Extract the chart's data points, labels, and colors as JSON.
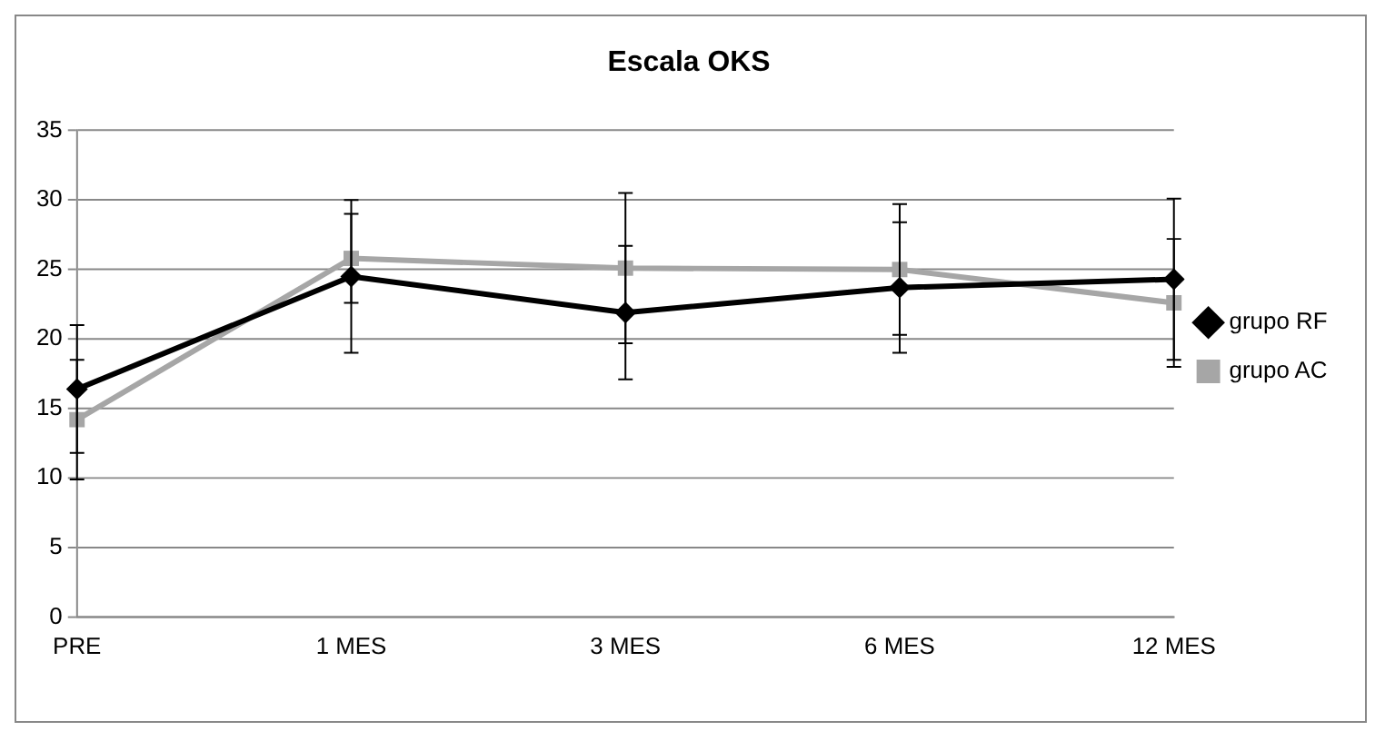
{
  "chart_data": {
    "type": "line",
    "title": "Escala OKS",
    "categories": [
      "PRE",
      "1 MES",
      "3 MES",
      "6 MES",
      "12 MES"
    ],
    "series": [
      {
        "name": "grupo RF",
        "color": "#000000",
        "marker": "diamond",
        "values": [
          16.4,
          24.5,
          21.9,
          23.7,
          24.3
        ],
        "errors": [
          4.6,
          5.5,
          4.8,
          4.7,
          5.8
        ]
      },
      {
        "name": "grupo AC",
        "color": "#a6a6a6",
        "marker": "square",
        "values": [
          14.2,
          25.8,
          25.1,
          25.0,
          22.6
        ],
        "errors": [
          4.3,
          3.2,
          5.4,
          4.7,
          4.6
        ]
      }
    ],
    "ylim": [
      0,
      35
    ],
    "yticks": [
      0,
      5,
      10,
      15,
      20,
      25,
      30,
      35
    ],
    "grid": "y",
    "legend": "right"
  }
}
